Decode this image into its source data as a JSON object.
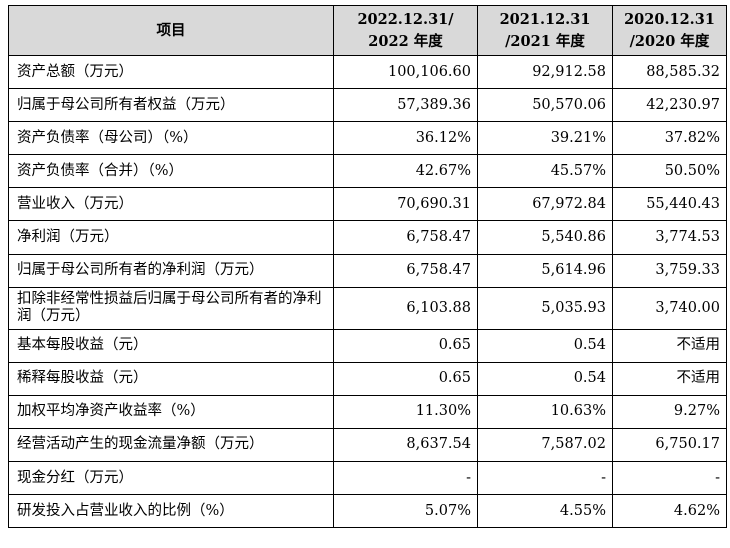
{
  "table": {
    "headers": [
      "项目",
      "2022.12.31/\n2022 年度",
      "2021.12.31\n/2021 年度",
      "2020.12.31\n/2020 年度"
    ],
    "rows": [
      {
        "item": "资产总额（万元）",
        "values": [
          "100,106.60",
          "92,912.58",
          "88,585.32"
        ]
      },
      {
        "item": "归属于母公司所有者权益（万元）",
        "values": [
          "57,389.36",
          "50,570.06",
          "42,230.97"
        ]
      },
      {
        "item": "资产负债率（母公司）（%）",
        "values": [
          "36.12%",
          "39.21%",
          "37.82%"
        ]
      },
      {
        "item": "资产负债率（合并）（%）",
        "values": [
          "42.67%",
          "45.57%",
          "50.50%"
        ]
      },
      {
        "item": "营业收入（万元）",
        "values": [
          "70,690.31",
          "67,972.84",
          "55,440.43"
        ]
      },
      {
        "item": "净利润（万元）",
        "values": [
          "6,758.47",
          "5,540.86",
          "3,774.53"
        ]
      },
      {
        "item": "归属于母公司所有者的净利润（万元）",
        "values": [
          "6,758.47",
          "5,614.96",
          "3,759.33"
        ]
      },
      {
        "item": "扣除非经常性损益后归属于母公司所有者的净利润（万元）",
        "values": [
          "6,103.88",
          "5,035.93",
          "3,740.00"
        ]
      },
      {
        "item": "基本每股收益（元）",
        "values": [
          "0.65",
          "0.54",
          "不适用"
        ]
      },
      {
        "item": "稀释每股收益（元）",
        "values": [
          "0.65",
          "0.54",
          "不适用"
        ]
      },
      {
        "item": "加权平均净资产收益率（%）",
        "values": [
          "11.30%",
          "10.63%",
          "9.27%"
        ]
      },
      {
        "item": "经营活动产生的现金流量净额（万元）",
        "values": [
          "8,637.54",
          "7,587.02",
          "6,750.17"
        ]
      },
      {
        "item": "现金分红（万元）",
        "values": [
          "-",
          "-",
          "-"
        ]
      },
      {
        "item": "研发投入占营业收入的比例（%）",
        "values": [
          "5.07%",
          "4.55%",
          "4.62%"
        ]
      }
    ]
  }
}
